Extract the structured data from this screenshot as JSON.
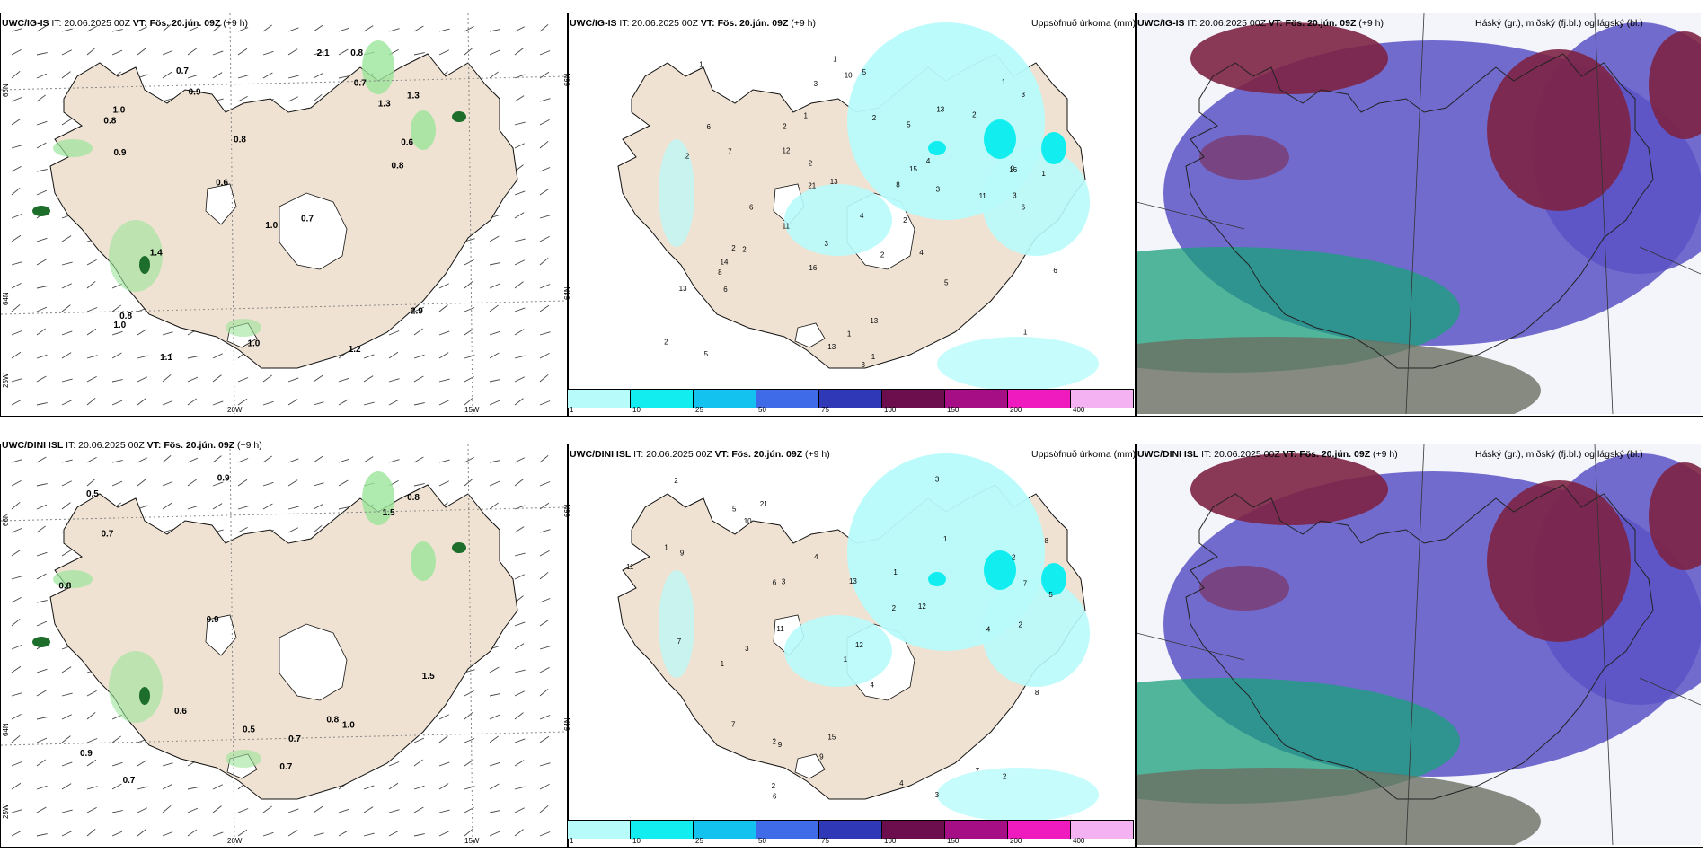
{
  "panels": [
    {
      "model": "UWC/IG-IS",
      "it": "IT: 20.06.2025 00Z",
      "vt_label": "VT:",
      "vt": "Fös. 20.jún. 09Z",
      "offset": "(+9 h)",
      "right": ""
    },
    {
      "model": "UWC/IG-IS",
      "it": "IT: 20.06.2025 00Z",
      "vt_label": "VT:",
      "vt": "Fös. 20.jún. 09Z",
      "offset": "(+9 h)",
      "right": "Uppsöfnuð úrkoma (mm)"
    },
    {
      "model": "UWC/IG-IS",
      "it": "IT: 20.06.2025 00Z",
      "vt_label": "VT:",
      "vt": "Fös. 20.jún. 09Z",
      "offset": "(+9 h)",
      "right": "Háský (gr.), miðský (fj.bl.) og lágský (bl.)"
    },
    {
      "model": "UWC/DINI ISL",
      "it": "IT: 20.06.2025 00Z",
      "vt_label": "VT:",
      "vt": "Fös. 20.jún. 09Z",
      "offset": "(+9 h)",
      "right": ""
    },
    {
      "model": "UWC/DINI ISL",
      "it": "IT: 20.06.2025 00Z",
      "vt_label": "VT:",
      "vt": "Fös. 20.jún. 09Z",
      "offset": "(+9 h)",
      "right": "Uppsöfnuð úrkoma (mm)"
    },
    {
      "model": "UWC/DINI ISL",
      "it": "IT: 20.06.2025 00Z",
      "vt_label": "VT:",
      "vt": "Fös. 20.jún. 09Z",
      "offset": "(+9 h)",
      "right": "Háský (gr.), miðský (fj.bl.) og lágský (bl.)"
    }
  ],
  "axes": {
    "lat66": "66N",
    "lat64": "64N",
    "lon25": "25W",
    "lon20": "20W",
    "lon15": "15W"
  },
  "colorbar": {
    "ticks": [
      "1",
      "10",
      "25",
      "50",
      "75",
      "100",
      "150",
      "200",
      "400"
    ],
    "colors": [
      "#b8fbfb",
      "#12eef0",
      "#13c2ef",
      "#3f6be8",
      "#2f38b7",
      "#6c0d4d",
      "#a60e86",
      "#f01bbf",
      "#f5b2f2"
    ]
  },
  "wind_precip_labels_top": [
    "0.7",
    "0.6",
    "1.2",
    "0.8",
    "1.3",
    "1.0",
    "2.9",
    "1.0",
    "0.7",
    "1.3",
    "0.8",
    "0.8",
    "1.4",
    "0.9",
    "1.0",
    "0.7",
    "0.8",
    "0.9",
    "1.0",
    "0.8",
    "2.1",
    "1.1",
    "0.6"
  ],
  "wind_precip_labels_bottom": [
    "0.9",
    "0.9",
    "0.7",
    "1.5",
    "1.0",
    "0.5",
    "0.8",
    "0.9",
    "0.8",
    "0.7",
    "0.7",
    "0.7",
    "0.8",
    "0.5",
    "0.6",
    "1.5"
  ],
  "rain_labels_top": [
    "2",
    "3",
    "2",
    "2",
    "2",
    "1",
    "6",
    "5",
    "3",
    "1",
    "2",
    "1",
    "2",
    "3",
    "3",
    "4",
    "1",
    "1",
    "2",
    "5",
    "6",
    "3",
    "4",
    "7",
    "6",
    "6",
    "8",
    "6",
    "13",
    "5",
    "11",
    "13",
    "13",
    "14",
    "16",
    "21",
    "13",
    "16",
    "12",
    "15",
    "10",
    "8",
    "11",
    "13",
    "5",
    "1",
    "2",
    "3",
    "1",
    "2",
    "4",
    "2",
    "1",
    "2"
  ],
  "rain_labels_bottom": [
    "3",
    "2",
    "5",
    "8",
    "6",
    "1",
    "1",
    "2",
    "2",
    "3",
    "4",
    "6",
    "7",
    "8",
    "9",
    "9",
    "10",
    "7",
    "4",
    "12",
    "11",
    "7",
    "13",
    "11",
    "21",
    "9",
    "12",
    "15",
    "4",
    "3",
    "2",
    "5",
    "4",
    "1",
    "2",
    "1",
    "1",
    "2",
    "7",
    "2",
    "3"
  ],
  "colors": {
    "land": "#efe2d2",
    "sea": "#ffffff",
    "rain_light": "#b8fbfb",
    "rain_mid": "#12eef0",
    "precip_green": "#9be59b",
    "precip_dark": "#1d6e2b",
    "high_cloud": "#7d2444",
    "mid_cloud": "#5a52c6",
    "low_cloud": "#1aa07a"
  }
}
